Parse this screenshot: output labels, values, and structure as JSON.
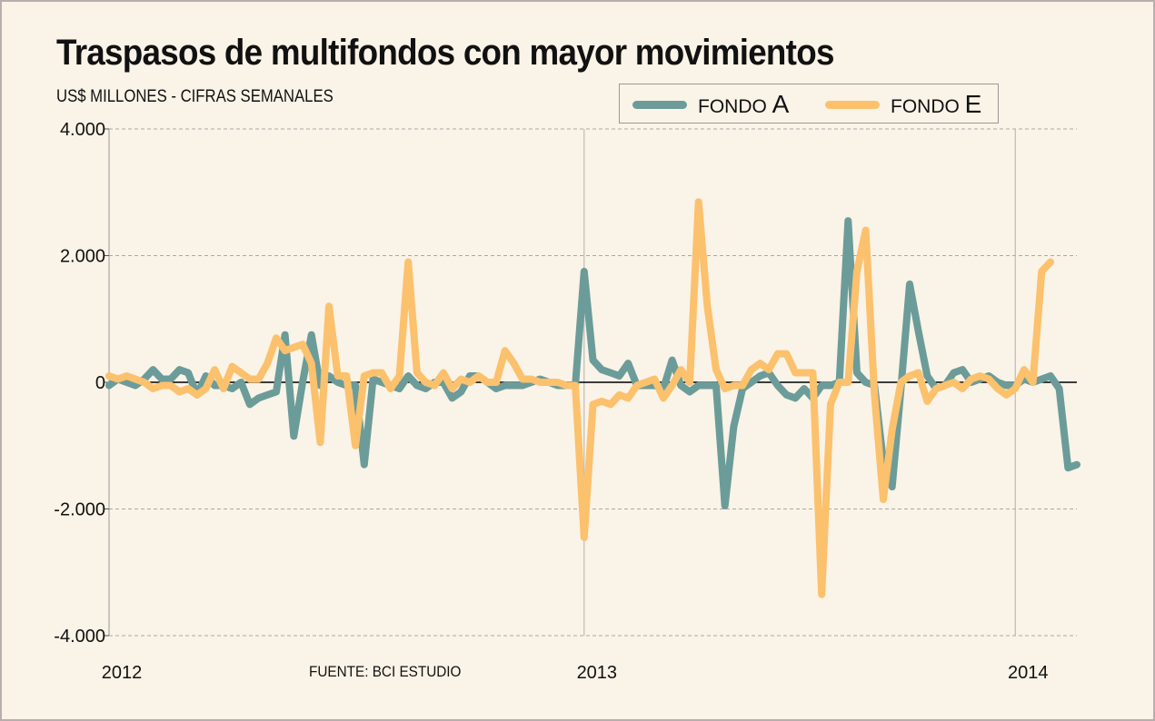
{
  "title": "Traspasos de multifondos con mayor movimientos",
  "subtitle": "US$ MILLONES - CIFRAS SEMANALES",
  "source": "FUENTE: BCI ESTUDIO",
  "colors": {
    "fondo_a": "#6b9c99",
    "fondo_e": "#fcc16d",
    "background": "#faf3e7"
  },
  "legend": {
    "a": {
      "prefix": "FONDO ",
      "letter": "A"
    },
    "e": {
      "prefix": "FONDO ",
      "letter": "E"
    }
  },
  "chart_data": {
    "type": "line",
    "xlim": [
      0,
      110
    ],
    "ylim": [
      -4000,
      4000
    ],
    "yticks": [
      {
        "value": 4000,
        "label": "4.000"
      },
      {
        "value": 2000,
        "label": "2.000"
      },
      {
        "value": 0,
        "label": "0"
      },
      {
        "value": -2000,
        "label": "-2.000"
      },
      {
        "value": -4000,
        "label": "-4.000"
      }
    ],
    "year_markers": [
      {
        "week": 0,
        "label": "2012",
        "gridline": false
      },
      {
        "week": 54,
        "label": "2013",
        "gridline": true
      },
      {
        "week": 103,
        "label": "2014",
        "gridline": true
      }
    ],
    "grid": "dashed horizontal",
    "legend_position": "top-right",
    "series": [
      {
        "name": "FONDO A",
        "values": [
          -50,
          50,
          0,
          -50,
          50,
          200,
          50,
          50,
          200,
          150,
          -200,
          100,
          -50,
          -50,
          -100,
          0,
          -350,
          -250,
          -200,
          -150,
          750,
          -850,
          0,
          750,
          -50,
          100,
          0,
          -50,
          -50,
          -1300,
          50,
          0,
          -50,
          -100,
          100,
          -50,
          -100,
          0,
          0,
          -250,
          -150,
          100,
          100,
          0,
          -100,
          -50,
          -50,
          -50,
          0,
          50,
          0,
          -50,
          -50,
          -50,
          1750,
          350,
          200,
          150,
          100,
          300,
          -50,
          -50,
          -50,
          -100,
          350,
          -50,
          -150,
          -50,
          -50,
          -50,
          -1950,
          -700,
          -100,
          0,
          100,
          150,
          -50,
          -200,
          -250,
          -100,
          -250,
          -50,
          -50,
          0,
          2550,
          150,
          0,
          -50,
          -1250,
          -1650,
          -100,
          1550,
          800,
          100,
          -100,
          -50,
          150,
          200,
          0,
          50,
          100,
          0,
          -50,
          -50,
          50,
          0,
          50,
          100,
          -100,
          -1350,
          -1300
        ]
      },
      {
        "name": "FONDO E",
        "values": [
          100,
          50,
          100,
          50,
          0,
          -100,
          -50,
          -50,
          -150,
          -100,
          -200,
          -100,
          200,
          -100,
          250,
          150,
          50,
          50,
          300,
          700,
          500,
          550,
          600,
          300,
          -950,
          1200,
          100,
          100,
          -1000,
          100,
          150,
          150,
          -100,
          100,
          1900,
          150,
          0,
          -50,
          150,
          -100,
          50,
          0,
          100,
          0,
          0,
          500,
          300,
          50,
          50,
          0,
          0,
          0,
          -50,
          -50,
          -2450,
          -350,
          -300,
          -350,
          -200,
          -250,
          -50,
          0,
          50,
          -250,
          -50,
          200,
          0,
          2850,
          1200,
          200,
          -100,
          -50,
          -50,
          200,
          300,
          200,
          450,
          450,
          150,
          150,
          150,
          -3350,
          -350,
          0,
          0,
          1750,
          2400,
          -200,
          -1850,
          -750,
          0,
          100,
          150,
          -300,
          -100,
          -50,
          0,
          -100,
          50,
          100,
          50,
          -100,
          -200,
          -100,
          200,
          0,
          1750,
          1900
        ]
      }
    ]
  }
}
